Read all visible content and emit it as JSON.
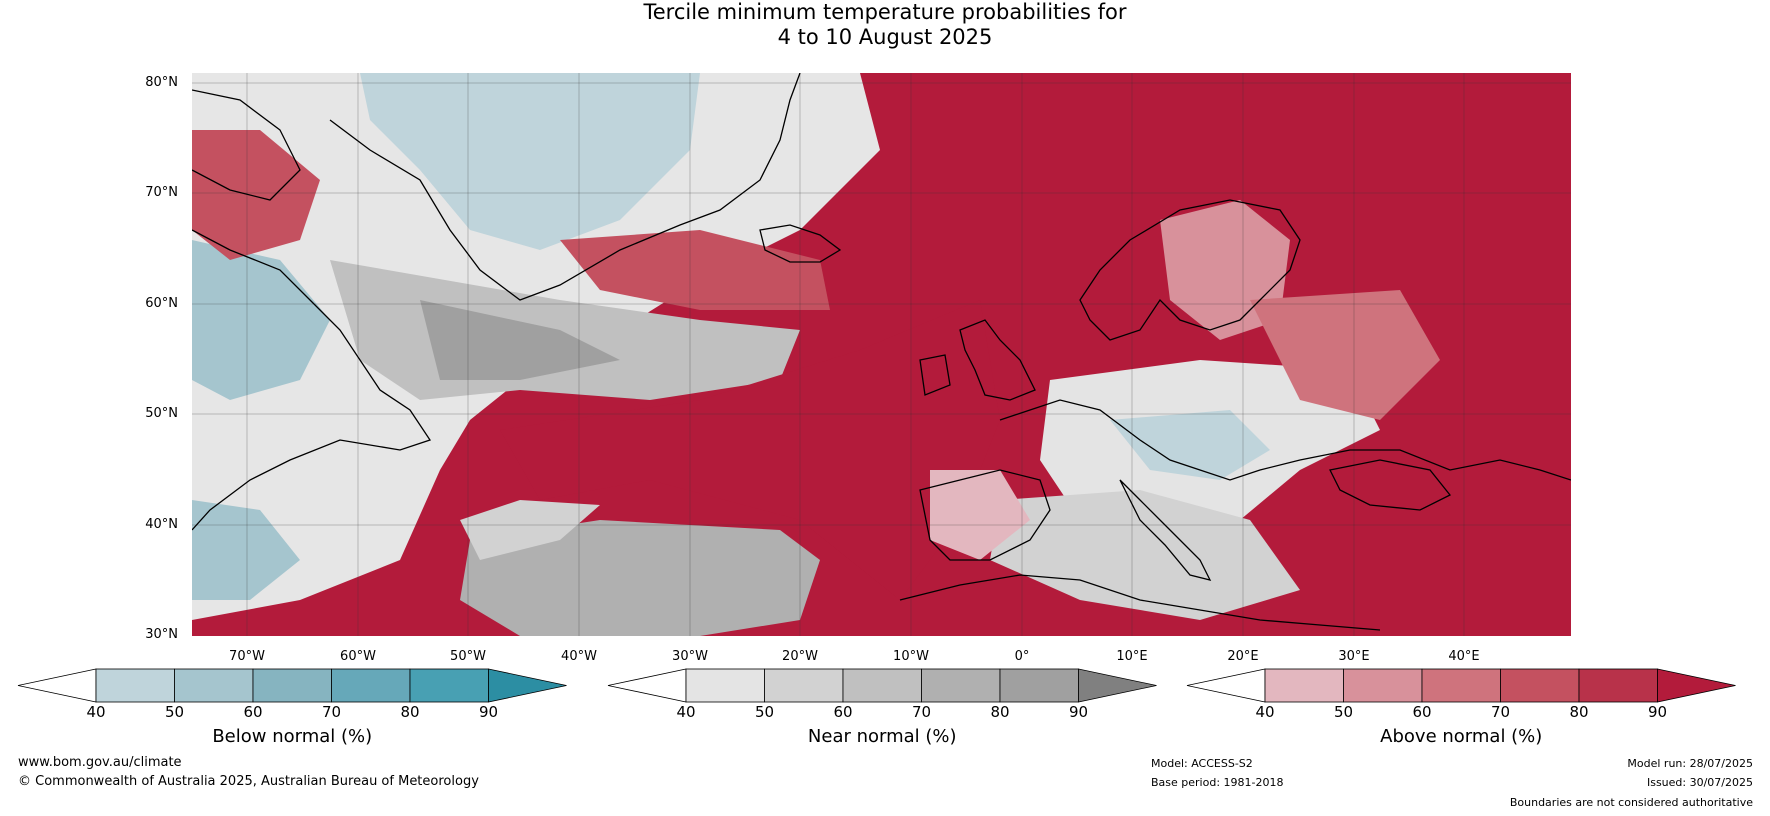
{
  "title": {
    "line1": "Tercile minimum temperature probabilities for",
    "line2": "4 to 10 August 2025"
  },
  "lat_labels": [
    "80°N",
    "70°N",
    "60°N",
    "50°N",
    "40°N",
    "30°N"
  ],
  "lon_labels": [
    "70°W",
    "60°W",
    "50°W",
    "40°W",
    "30°W",
    "20°W",
    "10°W",
    "0°",
    "10°E",
    "20°E",
    "30°E",
    "40°E"
  ],
  "colorbars": [
    {
      "title": "Below normal (%)",
      "ticks": [
        "40",
        "50",
        "60",
        "70",
        "80",
        "90"
      ],
      "colors": [
        "#ffffff",
        "#bfd4db",
        "#a5c5ce",
        "#86b4c0",
        "#66a8b9",
        "#48a0b3",
        "#2c8ea3"
      ]
    },
    {
      "title": "Near normal (%)",
      "ticks": [
        "40",
        "50",
        "60",
        "70",
        "80",
        "90"
      ],
      "colors": [
        "#ffffff",
        "#e4e4e4",
        "#d2d2d2",
        "#c0c0c0",
        "#b0b0b0",
        "#a0a0a0",
        "#808080"
      ]
    },
    {
      "title": "Above normal (%)",
      "ticks": [
        "40",
        "50",
        "60",
        "70",
        "80",
        "90"
      ],
      "colors": [
        "#ffffff",
        "#e3b7bf",
        "#d8919b",
        "#cf737d",
        "#c45160",
        "#b8324a",
        "#b31b3b"
      ]
    }
  ],
  "footer": {
    "website": "www.bom.gov.au/climate",
    "copyright": "© Commonwealth of Australia 2025, Australian Bureau of Meteorology",
    "model": "Model: ACCESS-S2",
    "base_period": "Base period: 1981-2018",
    "model_run": "Model run: 28/07/2025",
    "issued": "Issued: 30/07/2025",
    "disclaimer": "Boundaries are not considered authoritative"
  }
}
